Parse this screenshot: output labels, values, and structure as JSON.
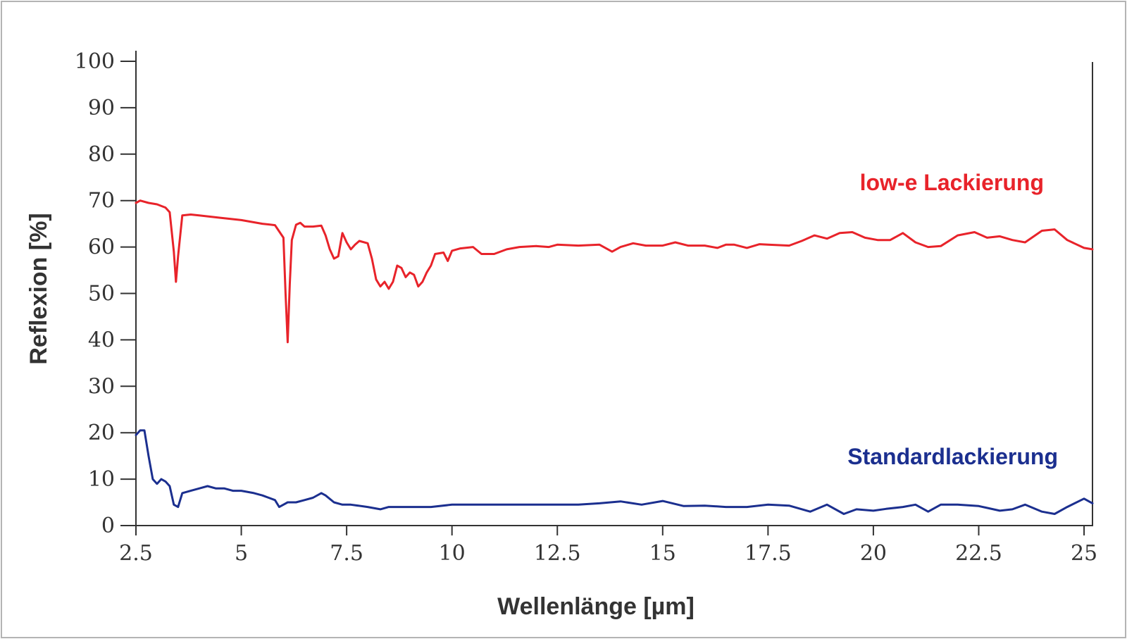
{
  "chart_data": {
    "type": "line",
    "title": "",
    "xlabel": "Wellenlänge [µm]",
    "ylabel": "Reflexion [%]",
    "xlim": [
      2.5,
      25.2
    ],
    "ylim": [
      0,
      100
    ],
    "x_ticks": [
      2.5,
      5,
      7.5,
      10,
      12.5,
      15,
      17.5,
      20,
      22.5,
      25
    ],
    "x_tick_labels": [
      "2.5",
      "5",
      "7.5",
      "10",
      "12.5",
      "15",
      "17.5",
      "20",
      "22.5",
      "25"
    ],
    "y_ticks": [
      0,
      10,
      20,
      30,
      40,
      50,
      60,
      70,
      80,
      90,
      100
    ],
    "y_tick_labels": [
      "0",
      "10",
      "20",
      "30",
      "40",
      "50",
      "60",
      "70",
      "80",
      "90",
      "100"
    ],
    "grid": false,
    "series": [
      {
        "name": "low-e Lackierung",
        "color": "#e8232a",
        "x": [
          2.5,
          2.6,
          2.8,
          3.0,
          3.2,
          3.3,
          3.4,
          3.45,
          3.5,
          3.6,
          3.8,
          4.0,
          4.5,
          5.0,
          5.5,
          5.8,
          6.0,
          6.05,
          6.1,
          6.15,
          6.2,
          6.3,
          6.4,
          6.5,
          6.7,
          6.9,
          7.0,
          7.1,
          7.2,
          7.3,
          7.4,
          7.5,
          7.6,
          7.7,
          7.8,
          8.0,
          8.1,
          8.2,
          8.3,
          8.4,
          8.5,
          8.6,
          8.7,
          8.8,
          8.9,
          9.0,
          9.1,
          9.2,
          9.3,
          9.4,
          9.5,
          9.6,
          9.8,
          9.9,
          10.0,
          10.2,
          10.5,
          10.7,
          11.0,
          11.3,
          11.6,
          12.0,
          12.3,
          12.5,
          13.0,
          13.5,
          13.8,
          14.0,
          14.3,
          14.6,
          15.0,
          15.3,
          15.6,
          16.0,
          16.3,
          16.5,
          16.7,
          17.0,
          17.3,
          17.5,
          18.0,
          18.3,
          18.6,
          18.9,
          19.2,
          19.5,
          19.8,
          20.1,
          20.4,
          20.7,
          21.0,
          21.3,
          21.6,
          22.0,
          22.4,
          22.7,
          23.0,
          23.3,
          23.6,
          24.0,
          24.3,
          24.6,
          25.0,
          25.2
        ],
        "y": [
          69.5,
          70.0,
          69.5,
          69.2,
          68.5,
          67.5,
          59.0,
          52.5,
          58.0,
          66.8,
          67.0,
          66.8,
          66.3,
          65.8,
          65.0,
          64.7,
          62.0,
          50.0,
          39.5,
          52.0,
          61.5,
          64.8,
          65.2,
          64.4,
          64.4,
          64.6,
          62.5,
          59.5,
          57.5,
          58.0,
          63.0,
          61.0,
          59.5,
          60.5,
          61.3,
          60.8,
          57.5,
          53.0,
          51.5,
          52.5,
          51.0,
          52.5,
          56.0,
          55.5,
          53.5,
          54.5,
          54.0,
          51.5,
          52.5,
          54.5,
          56.0,
          58.5,
          58.8,
          57.0,
          59.2,
          59.7,
          60.0,
          58.5,
          58.5,
          59.5,
          60.0,
          60.2,
          60.0,
          60.5,
          60.3,
          60.5,
          59.0,
          60.0,
          60.8,
          60.3,
          60.3,
          61.0,
          60.3,
          60.3,
          59.8,
          60.5,
          60.5,
          59.8,
          60.6,
          60.5,
          60.3,
          61.3,
          62.5,
          61.8,
          63.0,
          63.2,
          62.0,
          61.5,
          61.5,
          63.0,
          61.0,
          60.0,
          60.2,
          62.5,
          63.2,
          62.0,
          62.3,
          61.5,
          61.0,
          63.5,
          63.8,
          61.5,
          59.8,
          59.5
        ]
      },
      {
        "name": "Standardlackierung",
        "color": "#1b2f8f",
        "x": [
          2.5,
          2.6,
          2.7,
          2.8,
          2.9,
          3.0,
          3.1,
          3.2,
          3.3,
          3.4,
          3.5,
          3.6,
          3.8,
          4.0,
          4.2,
          4.4,
          4.6,
          4.8,
          5.0,
          5.3,
          5.5,
          5.8,
          5.9,
          6.0,
          6.1,
          6.3,
          6.5,
          6.7,
          6.9,
          7.0,
          7.2,
          7.4,
          7.6,
          8.0,
          8.3,
          8.5,
          9.0,
          9.5,
          10.0,
          10.5,
          11.0,
          11.5,
          12.0,
          12.5,
          13.0,
          13.5,
          14.0,
          14.5,
          15.0,
          15.5,
          16.0,
          16.5,
          17.0,
          17.5,
          18.0,
          18.5,
          18.9,
          19.3,
          19.6,
          20.0,
          20.3,
          20.7,
          21.0,
          21.3,
          21.6,
          22.0,
          22.5,
          23.0,
          23.3,
          23.6,
          24.0,
          24.3,
          24.6,
          25.0,
          25.2
        ],
        "y": [
          19.5,
          20.5,
          20.5,
          15.0,
          10.0,
          9.0,
          10.0,
          9.5,
          8.5,
          4.5,
          4.0,
          7.0,
          7.5,
          8.0,
          8.5,
          8.0,
          8.0,
          7.5,
          7.5,
          7.0,
          6.5,
          5.5,
          4.0,
          4.5,
          5.0,
          5.0,
          5.5,
          6.0,
          7.0,
          6.5,
          5.0,
          4.5,
          4.5,
          4.0,
          3.5,
          4.0,
          4.0,
          4.0,
          4.5,
          4.5,
          4.5,
          4.5,
          4.5,
          4.5,
          4.5,
          4.8,
          5.2,
          4.5,
          5.3,
          4.2,
          4.3,
          4.0,
          4.0,
          4.5,
          4.3,
          3.0,
          4.5,
          2.5,
          3.5,
          3.2,
          3.6,
          4.0,
          4.5,
          3.0,
          4.5,
          4.5,
          4.2,
          3.2,
          3.5,
          4.5,
          3.0,
          2.5,
          4.0,
          5.8,
          4.8
        ]
      }
    ],
    "annotations": [
      {
        "text": "low-e Lackierung",
        "series": 0
      },
      {
        "text": "Standardlackierung",
        "series": 1
      }
    ]
  }
}
